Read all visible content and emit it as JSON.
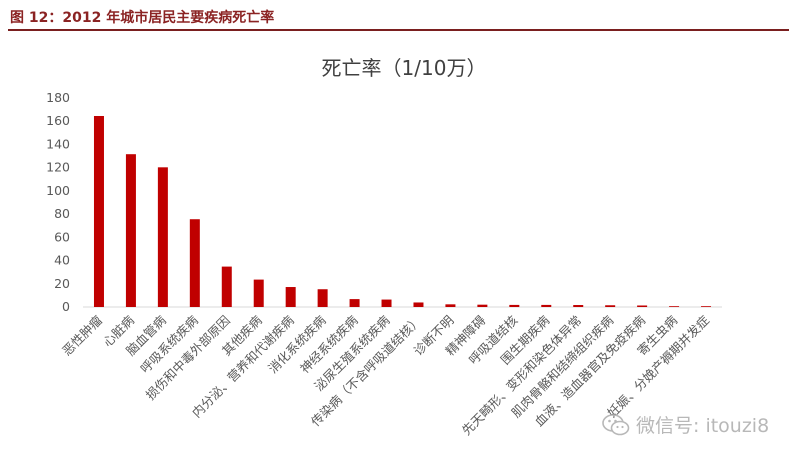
{
  "figure": {
    "caption": "图 12：2012 年城市居民主要疾病死亡率"
  },
  "watermark": {
    "text": "微信号: itouzi8",
    "icon": "wechat-icon"
  },
  "colors": {
    "bar": "#c00000",
    "caption": "#8b2323",
    "rule": "#7a1f1f",
    "axis": "#d9d9d9",
    "text": "#595959"
  },
  "chart_data": {
    "type": "bar",
    "title": "死亡率（1/10万）",
    "ylim": [
      0,
      180
    ],
    "yticks": [
      0,
      20,
      40,
      60,
      80,
      100,
      120,
      140,
      160,
      180
    ],
    "grid": false,
    "categories": [
      "恶性肿瘤",
      "心脏病",
      "脑血管病",
      "呼吸系统疾病",
      "损伤和中毒外部原因",
      "其他疾病",
      "内分泌、营养和代谢疾病",
      "消化系统疾病",
      "神经系统疾病",
      "泌尿生殖系统疾病",
      "传染病（不含呼吸道结核）",
      "诊断不明",
      "精神障碍",
      "呼吸道结核",
      "围生期疾病",
      "先天畸形、变形和染色体异常",
      "肌肉骨骼和结缔组织疾病",
      "血液、造血器官及免疫疾病",
      "寄生虫病",
      "妊娠、分娩产褥期并发症"
    ],
    "values": [
      164.5,
      131.6,
      120.3,
      75.6,
      34.8,
      23.6,
      17.2,
      15.3,
      6.8,
      6.4,
      3.9,
      2.3,
      2.0,
      1.8,
      1.8,
      1.7,
      1.5,
      1.3,
      0.1,
      0.1
    ]
  }
}
